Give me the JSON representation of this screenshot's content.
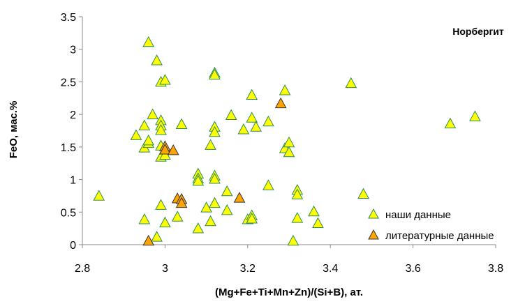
{
  "chart_data": {
    "type": "scatter",
    "title": "Норбергит",
    "xlabel": "(Mg+Fe+Ti+Mn+Zn)/(Si+B), ат.",
    "ylabel": "FeO, мас.%",
    "xlim": [
      2.8,
      3.8
    ],
    "ylim": [
      0,
      3.5
    ],
    "xticks": [
      "2.8",
      "3",
      "3.2",
      "3.4",
      "3.6",
      "3.8"
    ],
    "yticks": [
      "0",
      "0.5",
      "1",
      "1.5",
      "2",
      "2.5",
      "3",
      "3.5"
    ],
    "grid": false,
    "legend_position": "bottom-right",
    "series": [
      {
        "name": "наши данные",
        "marker": "triangle",
        "color": "#ffff00",
        "edge_color": "#2e8b57",
        "points": [
          [
            2.84,
            0.75
          ],
          [
            2.93,
            1.68
          ],
          [
            2.95,
            1.49
          ],
          [
            2.95,
            1.83
          ],
          [
            2.95,
            0.39
          ],
          [
            2.96,
            3.11
          ],
          [
            2.96,
            1.56
          ],
          [
            2.96,
            1.6
          ],
          [
            2.97,
            2.0
          ],
          [
            2.98,
            2.83
          ],
          [
            2.98,
            0.12
          ],
          [
            2.99,
            2.5
          ],
          [
            2.99,
            1.91
          ],
          [
            2.99,
            1.83
          ],
          [
            2.99,
            1.76
          ],
          [
            2.99,
            1.52
          ],
          [
            2.99,
            1.35
          ],
          [
            2.99,
            0.61
          ],
          [
            3.0,
            2.53
          ],
          [
            3.0,
            1.38
          ],
          [
            3.0,
            0.34
          ],
          [
            3.03,
            0.43
          ],
          [
            3.04,
            1.85
          ],
          [
            3.08,
            1.09
          ],
          [
            3.08,
            1.02
          ],
          [
            3.08,
            0.98
          ],
          [
            3.08,
            0.25
          ],
          [
            3.1,
            0.57
          ],
          [
            3.11,
            1.53
          ],
          [
            3.11,
            0.36
          ],
          [
            3.12,
            2.64
          ],
          [
            3.12,
            2.61
          ],
          [
            3.12,
            1.81
          ],
          [
            3.12,
            1.73
          ],
          [
            3.12,
            1.06
          ],
          [
            3.12,
            1.01
          ],
          [
            3.12,
            0.64
          ],
          [
            3.15,
            0.82
          ],
          [
            3.15,
            0.53
          ],
          [
            3.16,
            1.99
          ],
          [
            3.19,
            1.77
          ],
          [
            3.2,
            0.39
          ],
          [
            3.21,
            2.3
          ],
          [
            3.21,
            1.95
          ],
          [
            3.21,
            0.45
          ],
          [
            3.21,
            0.4
          ],
          [
            3.22,
            1.81
          ],
          [
            3.25,
            1.89
          ],
          [
            3.25,
            0.91
          ],
          [
            3.29,
            2.37
          ],
          [
            3.29,
            1.48
          ],
          [
            3.3,
            1.57
          ],
          [
            3.3,
            1.42
          ],
          [
            3.31,
            0.06
          ],
          [
            3.32,
            0.84
          ],
          [
            3.32,
            0.77
          ],
          [
            3.32,
            0.41
          ],
          [
            3.36,
            0.51
          ],
          [
            3.37,
            0.33
          ],
          [
            3.45,
            2.48
          ],
          [
            3.48,
            0.78
          ],
          [
            3.69,
            1.86
          ],
          [
            3.75,
            1.97
          ]
        ]
      },
      {
        "name": "литературные данные",
        "marker": "triangle",
        "color": "#ffa500",
        "edge_color": "#333333",
        "points": [
          [
            2.96,
            0.06
          ],
          [
            3.0,
            1.51
          ],
          [
            3.0,
            1.46
          ],
          [
            3.02,
            1.45
          ],
          [
            3.03,
            0.71
          ],
          [
            3.04,
            0.7
          ],
          [
            3.04,
            0.64
          ],
          [
            3.18,
            0.72
          ],
          [
            3.28,
            2.17
          ]
        ]
      }
    ]
  }
}
